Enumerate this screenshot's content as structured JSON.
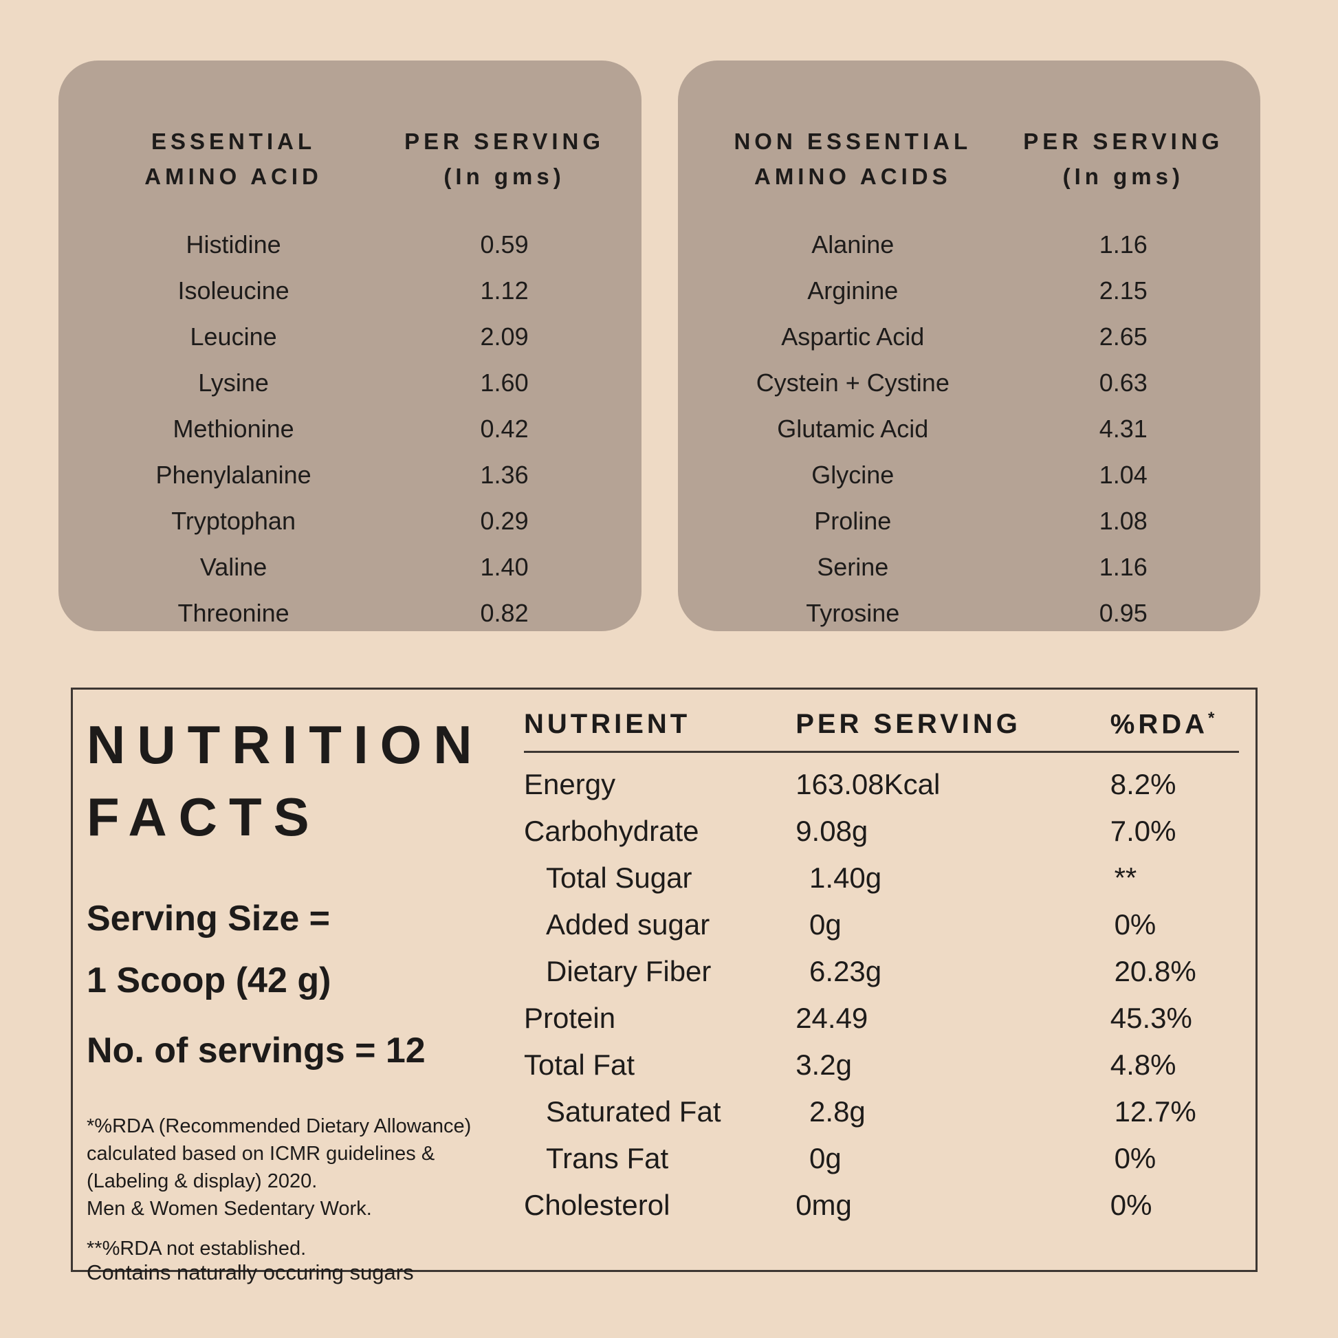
{
  "colors": {
    "page_bg": "#eedac5",
    "card_bg": "#b5a395",
    "text": "#1d1b1a",
    "box_border": "#3d3733"
  },
  "amino_tables": [
    {
      "title_line1": "ESSENTIAL",
      "title_line2": "AMINO ACID",
      "col_header_line1": "PER SERVING",
      "col_header_line2": "(In gms)",
      "rows": [
        {
          "name": "Histidine",
          "value": "0.59"
        },
        {
          "name": "Isoleucine",
          "value": "1.12"
        },
        {
          "name": "Leucine",
          "value": "2.09"
        },
        {
          "name": "Lysine",
          "value": "1.60"
        },
        {
          "name": "Methionine",
          "value": "0.42"
        },
        {
          "name": "Phenylalanine",
          "value": "1.36"
        },
        {
          "name": "Tryptophan",
          "value": "0.29"
        },
        {
          "name": "Valine",
          "value": "1.40"
        },
        {
          "name": "Threonine",
          "value": "0.82"
        }
      ]
    },
    {
      "title_line1": "NON ESSENTIAL",
      "title_line2": "AMINO ACIDS",
      "col_header_line1": "PER SERVING",
      "col_header_line2": "(In gms)",
      "rows": [
        {
          "name": "Alanine",
          "value": "1.16"
        },
        {
          "name": "Arginine",
          "value": "2.15"
        },
        {
          "name": "Aspartic Acid",
          "value": "2.65"
        },
        {
          "name": "Cystein + Cystine",
          "value": "0.63"
        },
        {
          "name": "Glutamic Acid",
          "value": "4.31"
        },
        {
          "name": "Glycine",
          "value": "1.04"
        },
        {
          "name": "Proline",
          "value": "1.08"
        },
        {
          "name": "Serine",
          "value": "1.16"
        },
        {
          "name": "Tyrosine",
          "value": "0.95"
        }
      ]
    }
  ],
  "nutrition_facts": {
    "title_line1": "NUTRITION",
    "title_line2": "FACTS",
    "serving_size_line1": "Serving Size =",
    "serving_size_line2": "1 Scoop (42 g)",
    "servings_line": "No. of servings = 12",
    "footnote_rda_line1": "*%RDA (Recommended Dietary Allowance)",
    "footnote_rda_line2": "calculated based on ICMR guidelines &",
    "footnote_rda_line3": "(Labeling & display) 2020.",
    "footnote_rda_line4": "Men & Women Sedentary Work.",
    "footnote_not_established": "**%RDA not established.",
    "footnote_sugars": "Contains naturally occuring sugars",
    "table": {
      "header_nutrient": "NUTRIENT",
      "header_per_serving": "PER SERVING",
      "header_rda": "%RDA",
      "header_rda_sup": "*",
      "rows": [
        {
          "name": "Energy",
          "per_serving": "163.08Kcal",
          "rda": "8.2%"
        },
        {
          "name": "Carbohydrate",
          "per_serving": "9.08g",
          "rda": "7.0%"
        },
        {
          "name": "Total Sugar",
          "per_serving": "1.40g",
          "rda": "**"
        },
        {
          "name": "Added sugar",
          "per_serving": "0g",
          "rda": "0%"
        },
        {
          "name": "Dietary Fiber",
          "per_serving": "6.23g",
          "rda": "20.8%"
        },
        {
          "name": "Protein",
          "per_serving": "24.49",
          "rda": "45.3%"
        },
        {
          "name": "Total Fat",
          "per_serving": "3.2g",
          "rda": "4.8%"
        },
        {
          "name": "Saturated Fat",
          "per_serving": "2.8g",
          "rda": "12.7%"
        },
        {
          "name": "Trans Fat",
          "per_serving": "0g",
          "rda": "0%"
        },
        {
          "name": "Cholesterol",
          "per_serving": "0mg",
          "rda": "0%"
        }
      ]
    }
  }
}
